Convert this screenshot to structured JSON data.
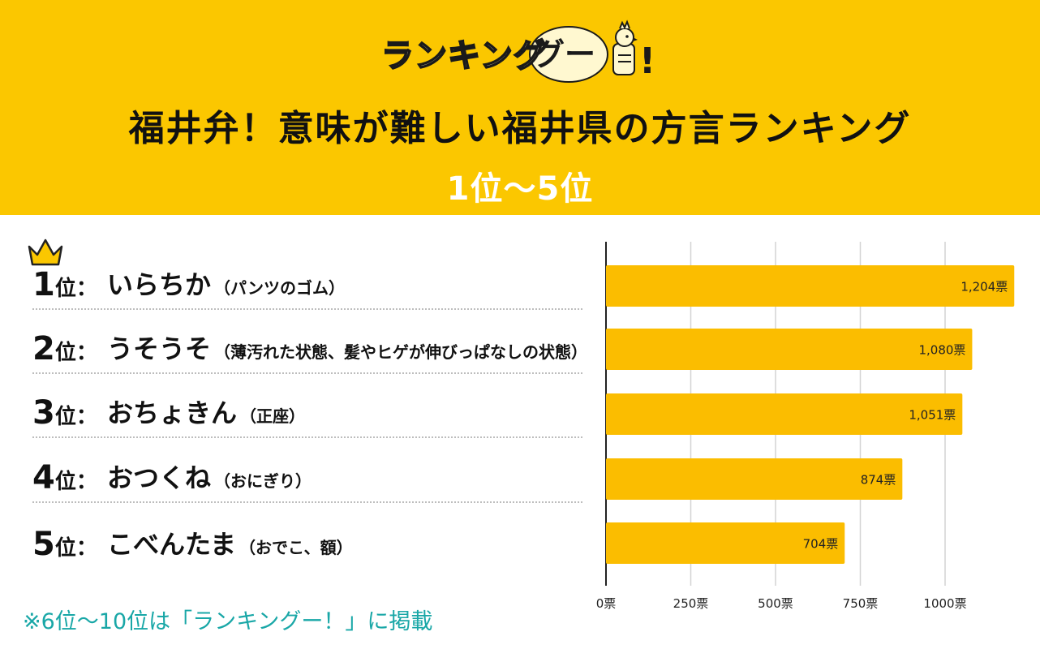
{
  "header": {
    "logo_text": "ランキング",
    "logo_bubble": "グー",
    "logo_bang": "!",
    "title": "福井弁！意味が難しい福井県の方言ランキング",
    "subtitle": "1位〜5位"
  },
  "rankings": [
    {
      "num": "1",
      "suffix": "位：",
      "word": "いらちか",
      "meaning": "（パンツのゴム）"
    },
    {
      "num": "2",
      "suffix": "位：",
      "word": "うそうそ",
      "meaning": "（薄汚れた状態、髪やヒゲが伸びっぱなしの状態）"
    },
    {
      "num": "3",
      "suffix": "位：",
      "word": "おちょきん",
      "meaning": "（正座）"
    },
    {
      "num": "4",
      "suffix": "位：",
      "word": "おつくね",
      "meaning": "（おにぎり）"
    },
    {
      "num": "5",
      "suffix": "位：",
      "word": "こべんたま",
      "meaning": "（おでこ、額）"
    }
  ],
  "chart_data": {
    "type": "bar",
    "orientation": "horizontal",
    "categories": [
      "いらちか",
      "うそうそ",
      "おちょきん",
      "おつくね",
      "こべんたま"
    ],
    "values": [
      1204,
      1080,
      1051,
      874,
      704
    ],
    "value_labels": [
      "1,204票",
      "1,080票",
      "1,051票",
      "874票",
      "704票"
    ],
    "xlim": [
      0,
      1200
    ],
    "ticks": [
      0,
      250,
      500,
      750,
      1000
    ],
    "tick_labels": [
      "0票",
      "250票",
      "500票",
      "750票",
      "1000票"
    ],
    "grid": true,
    "bar_color": "#fbbd00"
  },
  "footer": {
    "note": "※6位〜10位は「ランキングー！」に掲載"
  },
  "colors": {
    "header_bg": "#fbc700",
    "note": "#19a7a7"
  }
}
